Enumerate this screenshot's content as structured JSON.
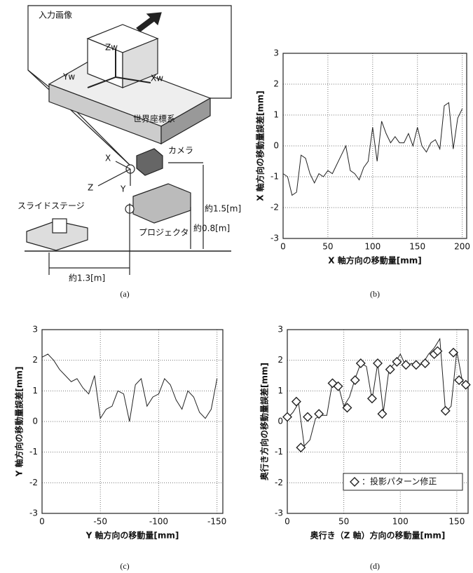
{
  "diagram": {
    "labels": {
      "input": "入力画像",
      "zw": "Zw",
      "yw": "Yw",
      "xw": "Xw",
      "world": "世界座標系",
      "camx": "X",
      "camera": "カメラ",
      "camz": "Z",
      "camy": "Y",
      "stage": "スライドステージ",
      "h15": "約1.5[m]",
      "h08": "約0.8[m]",
      "projector": "プロジェクタ",
      "d13": "約1.3[m]"
    }
  },
  "captions": [
    "(a)",
    "(b)",
    "(c)",
    "(d)"
  ],
  "chart_data": [
    {
      "type": "line",
      "xlabel": "X 軸方向の移動量[mm]",
      "ylabel": "X 軸方向の移動量誤差[mm]",
      "grid": true,
      "color": "#222",
      "xlim": [
        0,
        205
      ],
      "xticks": [
        0,
        50,
        100,
        150,
        200
      ],
      "ylim": [
        -3,
        3
      ],
      "yticks": [
        -3,
        -2,
        -1,
        0,
        1,
        2,
        3
      ],
      "x": [
        0,
        5,
        10,
        15,
        20,
        25,
        30,
        35,
        40,
        45,
        50,
        55,
        60,
        65,
        70,
        75,
        80,
        85,
        90,
        95,
        100,
        105,
        110,
        115,
        120,
        125,
        130,
        135,
        140,
        145,
        150,
        155,
        160,
        165,
        170,
        175,
        180,
        185,
        190,
        195,
        200
      ],
      "values": [
        -0.9,
        -1.0,
        -1.6,
        -1.5,
        -0.3,
        -0.4,
        -0.9,
        -1.2,
        -0.9,
        -1.0,
        -0.8,
        -0.9,
        -0.6,
        -0.3,
        0.0,
        -0.8,
        -0.9,
        -1.1,
        -0.7,
        -0.5,
        0.6,
        -0.5,
        0.8,
        0.4,
        0.1,
        0.3,
        0.1,
        0.1,
        0.4,
        0.0,
        0.6,
        0.0,
        -0.2,
        0.1,
        0.2,
        -0.1,
        1.3,
        1.4,
        -0.1,
        0.9,
        1.2
      ]
    },
    {
      "type": "line",
      "xlabel": "Y 軸方向の移動量[mm]",
      "ylabel": "Y 軸方向の移動量誤差[mm]",
      "grid": true,
      "color": "#222",
      "xlim": [
        0,
        -155
      ],
      "xticks": [
        0,
        -50,
        -100,
        -150
      ],
      "ylim": [
        -3,
        3
      ],
      "yticks": [
        -3,
        -2,
        -1,
        0,
        1,
        2,
        3
      ],
      "x": [
        0,
        -5,
        -10,
        -15,
        -20,
        -25,
        -30,
        -35,
        -40,
        -45,
        -50,
        -55,
        -60,
        -65,
        -70,
        -75,
        -80,
        -85,
        -90,
        -95,
        -100,
        -105,
        -110,
        -115,
        -120,
        -125,
        -130,
        -135,
        -140,
        -145,
        -150
      ],
      "values": [
        2.1,
        2.2,
        2.0,
        1.7,
        1.5,
        1.3,
        1.4,
        1.1,
        0.9,
        1.5,
        0.1,
        0.4,
        0.5,
        1.0,
        0.9,
        0.0,
        1.2,
        1.4,
        0.5,
        0.8,
        0.9,
        1.4,
        1.2,
        0.7,
        0.4,
        1.0,
        0.8,
        0.3,
        0.1,
        0.4,
        1.4
      ]
    },
    {
      "type": "line",
      "xlabel": "奥行き（Z 軸）方向の移動量[mm]",
      "ylabel": "奥行き方向の移動量誤差[mm]",
      "grid": true,
      "legend": "lower right",
      "xlim": [
        0,
        160
      ],
      "xticks": [
        0,
        50,
        100,
        150
      ],
      "ylim": [
        -3,
        3
      ],
      "yticks": [
        -3,
        -2,
        -1,
        0,
        1,
        2,
        3
      ],
      "x": [
        0,
        5,
        10,
        15,
        20,
        25,
        30,
        35,
        40,
        45,
        50,
        55,
        60,
        65,
        70,
        75,
        80,
        85,
        90,
        95,
        100,
        105,
        110,
        115,
        120,
        125,
        130,
        135,
        140,
        145,
        150,
        155,
        160
      ],
      "series": [
        {
          "color": "#222",
          "values": [
            0.1,
            0.3,
            0.6,
            -0.8,
            -0.6,
            0.1,
            0.2,
            0.2,
            1.3,
            1.2,
            0.5,
            0.8,
            1.4,
            1.9,
            1.8,
            0.7,
            1.9,
            0.3,
            1.7,
            1.9,
            2.2,
            1.8,
            1.9,
            1.8,
            1.9,
            2.2,
            2.4,
            2.7,
            0.3,
            0.5,
            2.3,
            1.3,
            1.2
          ]
        },
        {
          "name": "：投影パターン修正",
          "marker": "diamond",
          "color": "#222",
          "x": [
            0,
            8,
            12,
            18,
            28,
            40,
            45,
            53,
            60,
            65,
            75,
            80,
            84,
            91,
            97,
            105,
            114,
            122,
            130,
            133,
            140,
            147,
            152,
            158
          ],
          "values": [
            0.15,
            0.65,
            -0.85,
            0.15,
            0.25,
            1.25,
            1.15,
            0.45,
            1.35,
            1.9,
            0.75,
            1.9,
            0.25,
            1.7,
            1.95,
            1.85,
            1.85,
            1.9,
            2.2,
            2.3,
            0.35,
            2.25,
            1.35,
            1.2
          ]
        }
      ]
    }
  ]
}
